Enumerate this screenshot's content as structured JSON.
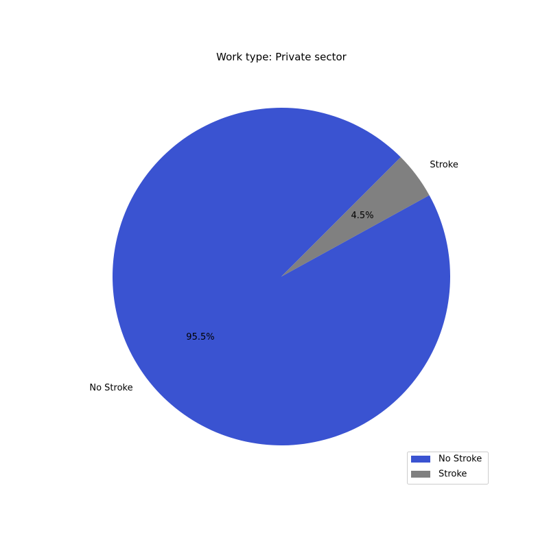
{
  "chart_data": {
    "type": "pie",
    "title": "Work type: Private sector",
    "slices": [
      {
        "label": "No Stroke",
        "value": 95.5,
        "pct_label": "95.5%",
        "color": "#3a53d1"
      },
      {
        "label": "Stroke",
        "value": 4.5,
        "pct_label": "4.5%",
        "color": "#808080"
      }
    ],
    "start_angle_deg": 45,
    "direction": "counterclockwise",
    "legend": {
      "placement": "lower-right",
      "entries": [
        "No Stroke",
        "Stroke"
      ]
    }
  }
}
